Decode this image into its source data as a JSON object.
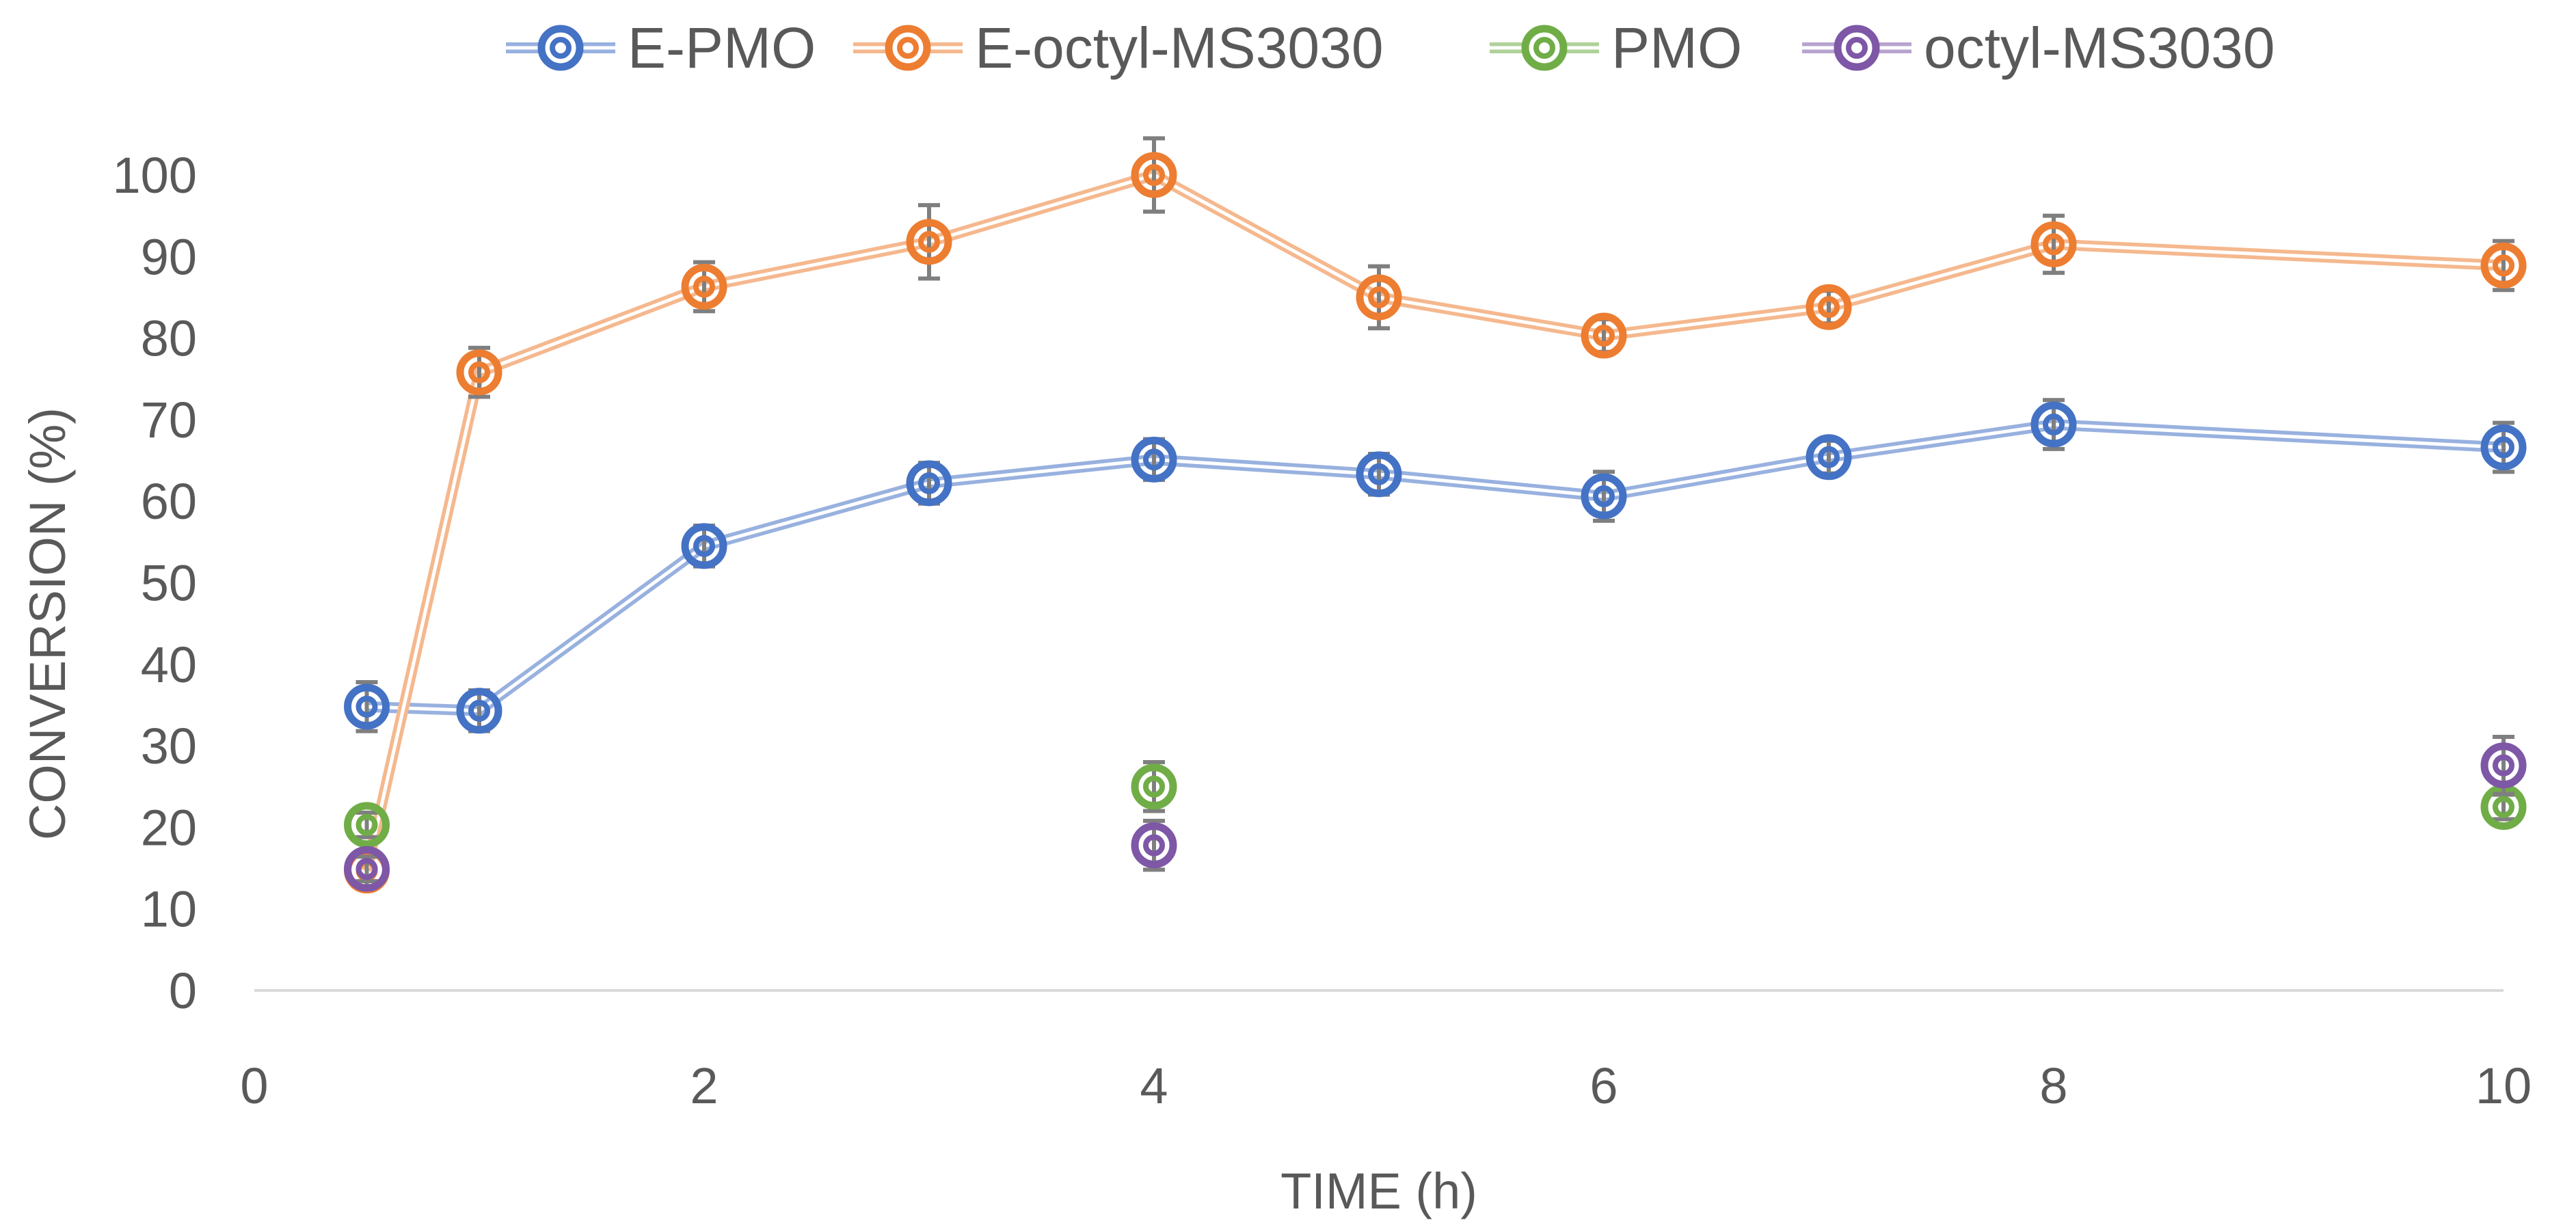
{
  "chart_data": {
    "type": "line",
    "title": "",
    "xlabel": "TIME (h)",
    "ylabel": "CONVERSION (%)",
    "xlim": [
      0,
      10
    ],
    "ylim": [
      0,
      100
    ],
    "x_ticks": [
      0,
      2,
      4,
      6,
      8,
      10
    ],
    "y_ticks": [
      0,
      10,
      20,
      30,
      40,
      50,
      60,
      70,
      80,
      90,
      100
    ],
    "grid": false,
    "legend_position": "top",
    "series": [
      {
        "name": "E-PMO",
        "color": "#4472c4",
        "connected": true,
        "x": [
          0.5,
          1,
          2,
          3,
          4,
          5,
          6,
          7,
          8,
          10
        ],
        "y": [
          34.8,
          34.3,
          54.5,
          62.2,
          65.1,
          63.3,
          60.6,
          65.4,
          69.4,
          66.6
        ],
        "err": [
          3.0,
          2.5,
          2.5,
          2.5,
          2.5,
          2.5,
          3.0,
          2.0,
          3.0,
          3.0
        ]
      },
      {
        "name": "E-octyl-MS3030",
        "color": "#ed7d31",
        "connected": true,
        "x": [
          0.5,
          1,
          2,
          3,
          4,
          5,
          6,
          7,
          8,
          10
        ],
        "y": [
          14.7,
          75.8,
          86.3,
          91.8,
          100.0,
          85.0,
          80.3,
          83.8,
          91.5,
          88.9
        ],
        "err": [
          2.0,
          3.0,
          3.0,
          4.5,
          4.5,
          3.8,
          2.0,
          2.0,
          3.5,
          3.0
        ]
      },
      {
        "name": "PMO",
        "color": "#70ad47",
        "connected": false,
        "x": [
          0.5,
          4,
          10
        ],
        "y": [
          20.3,
          25.0,
          22.5
        ],
        "err": [
          1.5,
          3.0,
          1.5
        ]
      },
      {
        "name": "octyl-MS3030",
        "color": "#7e57a7",
        "connected": false,
        "x": [
          0.5,
          4,
          10
        ],
        "y": [
          14.9,
          17.8,
          27.6
        ],
        "err": [
          1.5,
          3.0,
          3.5
        ]
      }
    ]
  }
}
